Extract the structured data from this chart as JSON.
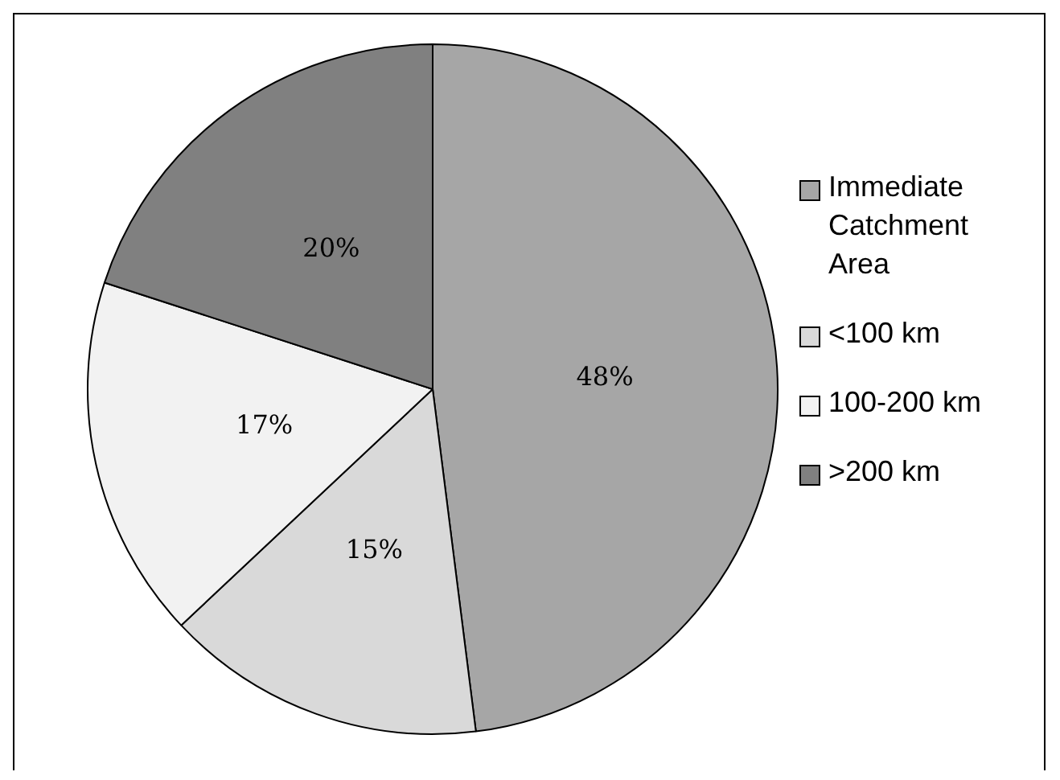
{
  "chart_data": {
    "type": "pie",
    "categories": [
      "Immediate Catchment Area",
      "<100 km",
      "100-200 km",
      ">200 km"
    ],
    "values": [
      48,
      15,
      17,
      20
    ],
    "colors": [
      "#a6a6a6",
      "#d9d9d9",
      "#f2f2f2",
      "#808080"
    ],
    "value_labels": [
      "48%",
      "15%",
      "17%",
      "20%"
    ],
    "legend": "right"
  }
}
